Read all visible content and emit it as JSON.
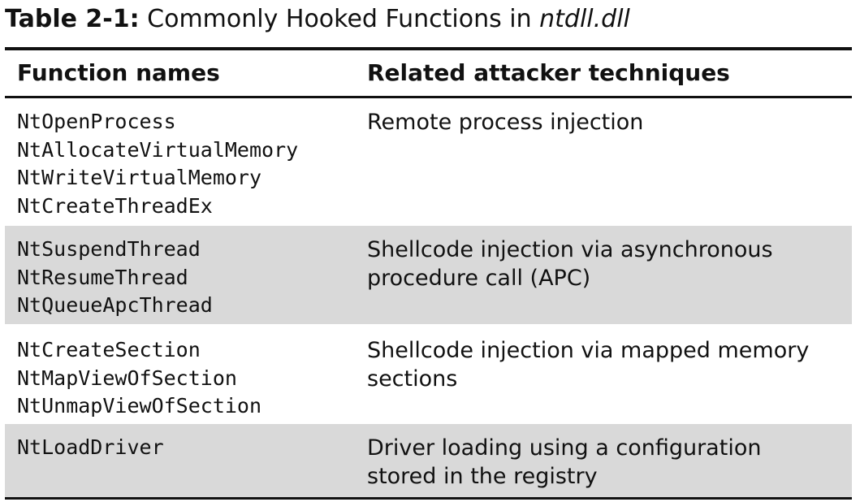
{
  "caption": {
    "label": "Table 2-1:",
    "title_prefix": "Commonly Hooked Functions in",
    "title_filename": "ntdll.dll"
  },
  "table": {
    "headers": {
      "function_names": "Function names",
      "techniques": "Related attacker techniques"
    },
    "rows": [
      {
        "functions": [
          "NtOpenProcess",
          "NtAllocateVirtualMemory",
          "NtWriteVirtualMemory",
          "NtCreateThreadEx"
        ],
        "technique_lines": [
          "Remote process injection"
        ]
      },
      {
        "functions": [
          "NtSuspendThread",
          "NtResumeThread",
          "NtQueueApcThread"
        ],
        "technique_lines": [
          "Shellcode injection via asynchronous",
          "procedure call (APC)"
        ]
      },
      {
        "functions": [
          "NtCreateSection",
          "NtMapViewOfSection",
          "NtUnmapViewOfSection"
        ],
        "technique_lines": [
          "Shellcode injection via mapped memory",
          "sections"
        ]
      },
      {
        "functions": [
          "NtLoadDriver"
        ],
        "technique_lines": [
          "Driver loading using a configuration",
          "stored in the registry"
        ]
      }
    ]
  },
  "colors": {
    "shaded_row": "#d9d9d9",
    "rule": "#111111"
  }
}
